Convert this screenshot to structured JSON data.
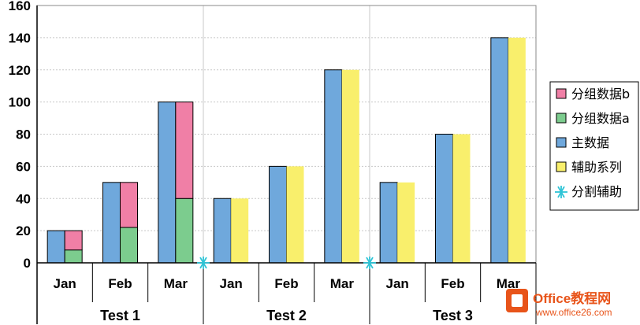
{
  "chart_data": {
    "type": "bar",
    "ylim": [
      0,
      160
    ],
    "yticks": [
      0,
      20,
      40,
      60,
      80,
      100,
      120,
      140,
      160
    ],
    "grid": true,
    "legend_position": "right",
    "groups": [
      {
        "name": "Test 1",
        "categories": [
          "Jan",
          "Feb",
          "Mar"
        ]
      },
      {
        "name": "Test 2",
        "categories": [
          "Jan",
          "Feb",
          "Mar"
        ]
      },
      {
        "name": "Test 3",
        "categories": [
          "Jan",
          "Feb",
          "Mar"
        ]
      }
    ],
    "categories": [
      "Jan",
      "Feb",
      "Mar",
      "Jan",
      "Feb",
      "Mar",
      "Jan",
      "Feb",
      "Mar"
    ],
    "series": [
      {
        "name": "主数据",
        "color": "#6fa8dc",
        "values": [
          20,
          50,
          100,
          40,
          60,
          120,
          50,
          80,
          140
        ]
      },
      {
        "name": "分组数据a",
        "color": "#7ccc8e",
        "stack": "side",
        "values": [
          8,
          22,
          40,
          null,
          null,
          null,
          null,
          null,
          null
        ]
      },
      {
        "name": "分组数据b",
        "color": "#f07fa6",
        "stack": "side",
        "values": [
          12,
          28,
          60,
          null,
          null,
          null,
          null,
          null,
          null
        ]
      },
      {
        "name": "辅助系列",
        "color": "#f9ef6c",
        "values": [
          null,
          null,
          null,
          40,
          60,
          120,
          50,
          80,
          140
        ]
      },
      {
        "name": "分割辅助",
        "color": "#2ec4d6",
        "type": "marker",
        "values": [
          null,
          null,
          null,
          0,
          null,
          null,
          0,
          null,
          null
        ]
      }
    ],
    "legend": [
      {
        "label": "分组数据b",
        "color": "#f07fa6",
        "marker": "square"
      },
      {
        "label": "分组数据a",
        "color": "#7ccc8e",
        "marker": "square"
      },
      {
        "label": "主数据",
        "color": "#6fa8dc",
        "marker": "square"
      },
      {
        "label": "辅助系列",
        "color": "#f9ef6c",
        "marker": "square"
      },
      {
        "label": "分割辅助",
        "color": "#2ec4d6",
        "marker": "asterisk"
      }
    ]
  },
  "watermark": {
    "brand": "Office教程网",
    "url": "www.office26.com"
  }
}
